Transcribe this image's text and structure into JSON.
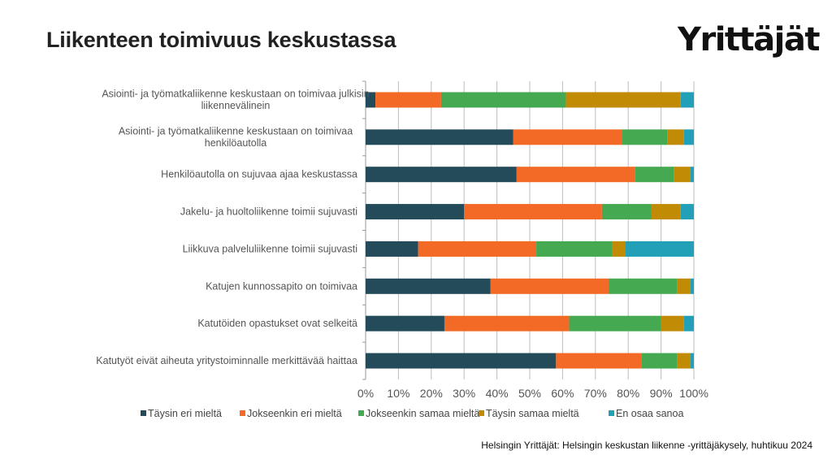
{
  "header": {
    "title": "Liikenteen toimivuus keskustassa",
    "logo_text": "Yrittäjät"
  },
  "footer": {
    "source": "Helsingin Yrittäjät:  Helsingin keskustan liikenne -yrittäjäkysely,  huhtikuu  2024"
  },
  "chart_data": {
    "type": "bar",
    "orientation": "horizontal",
    "stacked": "100%",
    "categories": [
      [
        "Asiointi- ja työmatkaliikenne keskustaan on toimivaa julkisin",
        "liikennevälinein"
      ],
      [
        "Asiointi- ja työmatkaliikenne keskustaan on toimivaa",
        "henkilöautolla"
      ],
      [
        "Henkilöautolla on sujuvaa ajaa keskustassa"
      ],
      [
        "Jakelu- ja huoltoliikenne toimii sujuvasti"
      ],
      [
        "Liikkuva palveluliikenne toimii sujuvasti"
      ],
      [
        "Katujen kunnossapito on toimivaa"
      ],
      [
        "Katutöiden opastukset ovat selkeitä"
      ],
      [
        "Katutyöt eivät aiheuta yritystoiminnalle merkittävää haittaa"
      ]
    ],
    "series": [
      {
        "name": "Täysin eri mieltä",
        "color": "#234b5a",
        "values": [
          3,
          45,
          46,
          30,
          16,
          38,
          24,
          58
        ]
      },
      {
        "name": "Jokseenkin eri mieltä",
        "color": "#f26a25",
        "values": [
          20,
          33,
          36,
          42,
          36,
          36,
          38,
          26
        ]
      },
      {
        "name": "Jokseenkin samaa mieltä",
        "color": "#45a952",
        "values": [
          38,
          14,
          12,
          15,
          23,
          21,
          28,
          11
        ]
      },
      {
        "name": "Täysin samaa mieltä",
        "color": "#c28b06",
        "values": [
          35,
          5,
          5,
          9,
          4,
          4,
          7,
          4
        ]
      },
      {
        "name": "En osaa sanoa",
        "color": "#21a0b8",
        "values": [
          4,
          3,
          1,
          4,
          21,
          1,
          3,
          1
        ]
      }
    ],
    "xlim": [
      0,
      100
    ],
    "xticks": [
      "0%",
      "10%",
      "20%",
      "30%",
      "40%",
      "50%",
      "60%",
      "70%",
      "80%",
      "90%",
      "100%"
    ],
    "grid": true,
    "legend": "bottom"
  }
}
